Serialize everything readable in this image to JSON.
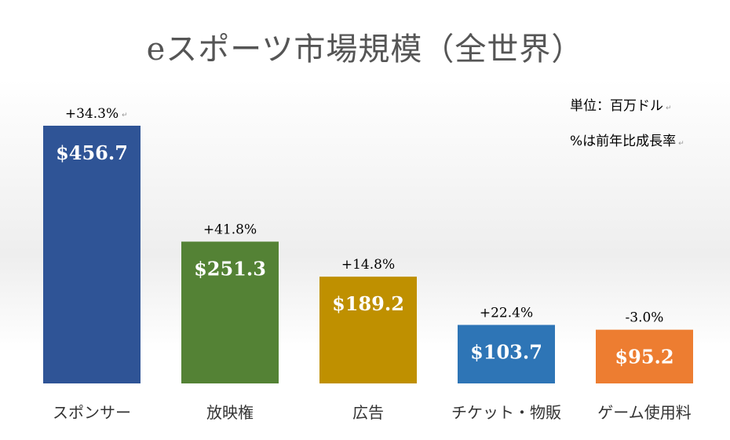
{
  "chart_data": {
    "type": "bar",
    "title": "eスポーツ市場規模（全世界）",
    "categories": [
      "スポンサー",
      "放映権",
      "広告",
      "チケット・物販",
      "ゲーム使用料"
    ],
    "values": [
      456.7,
      251.3,
      189.2,
      103.7,
      95.2
    ],
    "value_labels": [
      "$456.7",
      "$251.3",
      "$189.2",
      "$103.7",
      "$95.2"
    ],
    "growth_labels": [
      "+34.3%",
      "+41.8%",
      "+14.8%",
      "+22.4%",
      "-3.0%"
    ],
    "colors": [
      "#2f5496",
      "#548235",
      "#bf9000",
      "#2e75b6",
      "#ed7d31"
    ],
    "ylim": [
      0,
      456.7
    ],
    "grid": false,
    "legend": "none"
  },
  "notes": {
    "unit": "単位：百万ドル",
    "growth": "%は前年比成長率"
  }
}
